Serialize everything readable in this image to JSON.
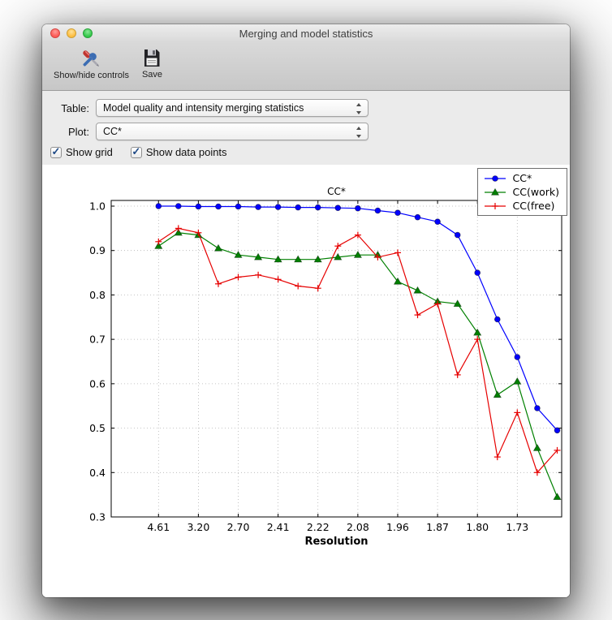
{
  "window": {
    "title": "Merging and model statistics",
    "toolbar": {
      "items": [
        {
          "label": "Show/hide controls",
          "icon": "tools-icon"
        },
        {
          "label": "Save",
          "icon": "save-icon"
        }
      ]
    },
    "controls": {
      "table": {
        "label": "Table:",
        "value": "Model quality and intensity merging statistics"
      },
      "plot": {
        "label": "Plot:",
        "value": "CC*"
      },
      "checkboxes": [
        {
          "label": "Show grid",
          "checked": true
        },
        {
          "label": "Show data points",
          "checked": true
        }
      ]
    }
  },
  "chart_data": {
    "type": "line",
    "title": "CC*",
    "xlabel": "Resolution",
    "ylabel": "",
    "ylim": [
      0.3,
      1.0
    ],
    "yticks": [
      0.3,
      0.4,
      0.5,
      0.6,
      0.7,
      0.8,
      0.9,
      1.0
    ],
    "xtick_labels": [
      "4.61",
      "3.20",
      "2.70",
      "2.41",
      "2.22",
      "2.08",
      "1.96",
      "1.87",
      "1.80",
      "1.73"
    ],
    "xtick_positions": [
      0,
      2,
      4,
      6,
      8,
      10,
      12,
      14,
      16,
      18
    ],
    "n_points": 21,
    "grid": true,
    "legend_position": "upper right",
    "series": [
      {
        "name": "CC*",
        "color": "#0000ff",
        "marker": "circle",
        "values": [
          1.0,
          1.0,
          0.999,
          0.999,
          0.999,
          0.998,
          0.998,
          0.997,
          0.997,
          0.996,
          0.995,
          0.99,
          0.985,
          0.975,
          0.965,
          0.935,
          0.85,
          0.745,
          0.66,
          0.545,
          0.495
        ]
      },
      {
        "name": "CC(work)",
        "color": "#008000",
        "marker": "triangle_up",
        "values": [
          0.91,
          0.94,
          0.935,
          0.905,
          0.89,
          0.885,
          0.88,
          0.88,
          0.88,
          0.885,
          0.89,
          0.89,
          0.83,
          0.81,
          0.785,
          0.78,
          0.715,
          0.575,
          0.605,
          0.455,
          0.345
        ]
      },
      {
        "name": "CC(free)",
        "color": "#e60000",
        "marker": "plus",
        "values": [
          0.92,
          0.95,
          0.94,
          0.825,
          0.84,
          0.845,
          0.835,
          0.82,
          0.815,
          0.91,
          0.935,
          0.885,
          0.895,
          0.755,
          0.78,
          0.62,
          0.7,
          0.435,
          0.535,
          0.4,
          0.45
        ]
      }
    ]
  }
}
